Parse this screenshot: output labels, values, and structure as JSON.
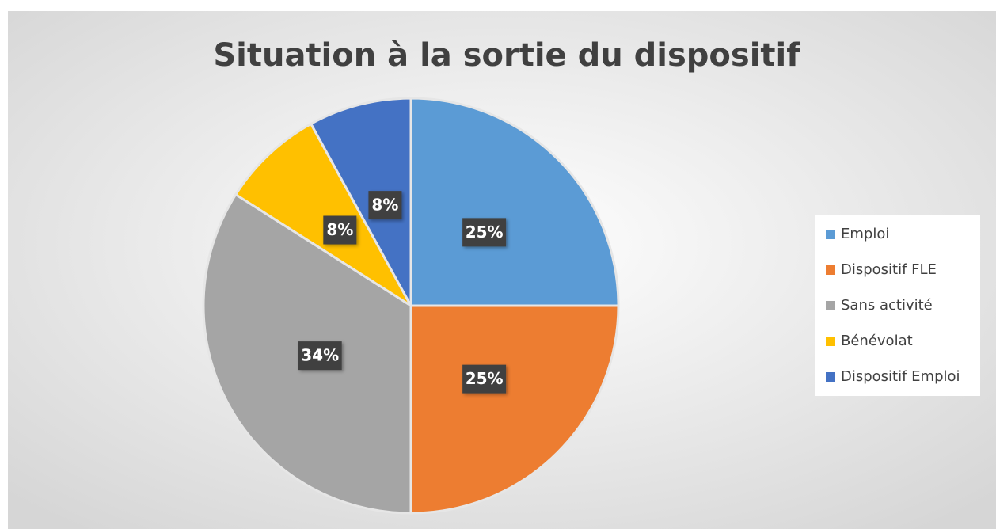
{
  "chart_data": {
    "type": "pie",
    "title": "Situation à la sortie du dispositif",
    "categories": [
      "Emploi",
      "Dispositif FLE",
      "Sans activité",
      "Bénévolat",
      "Dispositif Emploi"
    ],
    "values": [
      25,
      25,
      34,
      8,
      8
    ],
    "value_labels": [
      "25%",
      "25%",
      "34%",
      "8%",
      "8%"
    ],
    "colors": [
      "#5b9bd5",
      "#ed7d31",
      "#a5a5a5",
      "#ffc000",
      "#4472c4"
    ],
    "legend": "right"
  }
}
